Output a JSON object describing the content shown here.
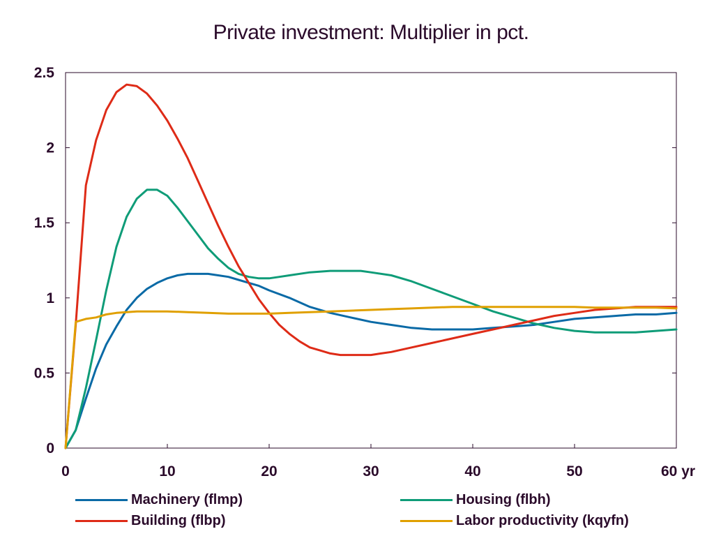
{
  "chart_data": {
    "type": "line",
    "title": "Private investment: Multiplier in pct.",
    "xlabel": "",
    "ylabel": "",
    "xlim": [
      0,
      60
    ],
    "ylim": [
      0,
      2.5
    ],
    "x_ticks": [
      0,
      10,
      20,
      30,
      40,
      50,
      60
    ],
    "x_tick_labels": [
      "0",
      "10",
      "20",
      "30",
      "40",
      "50",
      "60 yr"
    ],
    "y_ticks": [
      0,
      0.5,
      1,
      1.5,
      2,
      2.5
    ],
    "y_tick_labels": [
      "0",
      "0.5",
      "1",
      "1.5",
      "2",
      "2.5"
    ],
    "grid": false,
    "legend_position": "bottom",
    "series": [
      {
        "name": "Machinery (flmp)",
        "color": "#0a6aa6",
        "x": [
          0,
          1,
          2,
          3,
          4,
          5,
          6,
          7,
          8,
          9,
          10,
          11,
          12,
          13,
          14,
          15,
          16,
          17,
          18,
          19,
          20,
          22,
          24,
          26,
          28,
          30,
          32,
          34,
          36,
          38,
          40,
          42,
          44,
          46,
          48,
          50,
          52,
          54,
          56,
          58,
          60
        ],
        "y": [
          0,
          0.12,
          0.33,
          0.53,
          0.69,
          0.81,
          0.92,
          1.0,
          1.06,
          1.1,
          1.13,
          1.15,
          1.16,
          1.16,
          1.16,
          1.15,
          1.14,
          1.12,
          1.1,
          1.08,
          1.05,
          1.0,
          0.94,
          0.9,
          0.87,
          0.84,
          0.82,
          0.8,
          0.79,
          0.79,
          0.79,
          0.8,
          0.81,
          0.82,
          0.84,
          0.86,
          0.87,
          0.88,
          0.89,
          0.89,
          0.9
        ]
      },
      {
        "name": "Housing (flbh)",
        "color": "#0f9c78",
        "x": [
          0,
          1,
          2,
          3,
          4,
          5,
          6,
          7,
          8,
          9,
          10,
          11,
          12,
          13,
          14,
          15,
          16,
          17,
          18,
          19,
          20,
          21,
          22,
          24,
          26,
          28,
          29,
          30,
          32,
          34,
          36,
          38,
          40,
          42,
          44,
          46,
          48,
          50,
          52,
          54,
          56,
          58,
          60
        ],
        "y": [
          0,
          0.12,
          0.4,
          0.72,
          1.05,
          1.34,
          1.54,
          1.66,
          1.72,
          1.72,
          1.68,
          1.6,
          1.51,
          1.42,
          1.33,
          1.26,
          1.2,
          1.16,
          1.14,
          1.13,
          1.13,
          1.14,
          1.15,
          1.17,
          1.18,
          1.18,
          1.18,
          1.17,
          1.15,
          1.11,
          1.06,
          1.01,
          0.96,
          0.91,
          0.87,
          0.83,
          0.8,
          0.78,
          0.77,
          0.77,
          0.77,
          0.78,
          0.79
        ]
      },
      {
        "name": "Building (flbp)",
        "color": "#de2b17",
        "x": [
          0,
          1,
          2,
          3,
          4,
          5,
          6,
          7,
          8,
          9,
          10,
          11,
          12,
          13,
          14,
          15,
          16,
          17,
          18,
          19,
          20,
          21,
          22,
          23,
          24,
          25,
          26,
          27,
          28,
          29,
          30,
          31,
          32,
          34,
          36,
          38,
          40,
          42,
          44,
          46,
          48,
          50,
          52,
          54,
          56,
          58,
          60
        ],
        "y": [
          0,
          0.82,
          1.75,
          2.05,
          2.25,
          2.37,
          2.42,
          2.41,
          2.36,
          2.28,
          2.18,
          2.06,
          1.93,
          1.78,
          1.63,
          1.48,
          1.34,
          1.21,
          1.1,
          0.99,
          0.9,
          0.82,
          0.76,
          0.71,
          0.67,
          0.65,
          0.63,
          0.62,
          0.62,
          0.62,
          0.62,
          0.63,
          0.64,
          0.67,
          0.7,
          0.73,
          0.76,
          0.79,
          0.82,
          0.85,
          0.88,
          0.9,
          0.92,
          0.93,
          0.94,
          0.94,
          0.94
        ]
      },
      {
        "name": "Labor productivity (kqyfn)",
        "color": "#e0a000",
        "x": [
          0,
          1,
          2,
          3,
          4,
          5,
          6,
          7,
          8,
          9,
          10,
          12,
          14,
          16,
          18,
          20,
          22,
          24,
          26,
          28,
          30,
          32,
          34,
          36,
          38,
          40,
          42,
          44,
          46,
          48,
          50,
          52,
          54,
          56,
          58,
          60
        ],
        "y": [
          0,
          0.84,
          0.86,
          0.87,
          0.89,
          0.9,
          0.905,
          0.91,
          0.91,
          0.91,
          0.91,
          0.905,
          0.9,
          0.895,
          0.895,
          0.895,
          0.9,
          0.905,
          0.91,
          0.915,
          0.92,
          0.925,
          0.93,
          0.935,
          0.94,
          0.94,
          0.94,
          0.94,
          0.94,
          0.94,
          0.94,
          0.935,
          0.935,
          0.935,
          0.935,
          0.93
        ]
      }
    ]
  }
}
